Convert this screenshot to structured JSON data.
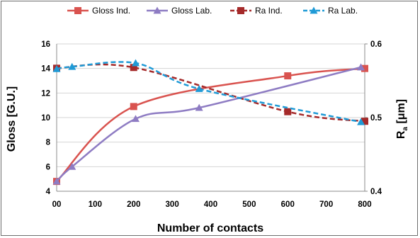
{
  "chart_data": {
    "type": "line",
    "title": "",
    "xlabel": "Number of contacts",
    "ylabel": "Gloss [G.U.]",
    "y2label": "R",
    "y2label_sub": "a",
    "y2label_unit": " [μm]",
    "xlim": [
      0,
      800
    ],
    "ylim": [
      4,
      16
    ],
    "y2lim": [
      0.4,
      0.6
    ],
    "x_ticks": [
      0,
      100,
      200,
      300,
      400,
      500,
      600,
      700,
      800
    ],
    "x_tick_labels": [
      "00",
      "100",
      "200",
      "300",
      "400",
      "500",
      "600",
      "700",
      "800"
    ],
    "y_ticks": [
      4,
      6,
      8,
      10,
      12,
      14,
      16
    ],
    "y2_ticks": [
      0.4,
      0.5,
      0.6
    ],
    "y2_tick_labels": [
      "0.4",
      "0.5",
      "0.6"
    ],
    "grid": "horizontal",
    "legend_position": "top",
    "series": [
      {
        "name": "Gloss Ind.",
        "axis": "left",
        "color": "#d9534f",
        "dash": "solid",
        "marker": "square",
        "x": [
          0,
          200,
          600,
          800
        ],
        "values": [
          4.8,
          10.9,
          13.4,
          14.0
        ]
      },
      {
        "name": "Gloss Lab.",
        "axis": "left",
        "color": "#8e7cc3",
        "dash": "solid",
        "marker": "triangle",
        "x": [
          0,
          40,
          205,
          370,
          790
        ],
        "values": [
          4.8,
          6.0,
          9.9,
          10.8,
          14.1
        ]
      },
      {
        "name": "Ra Ind.",
        "axis": "right",
        "color": "#a52a2a",
        "dash": "dashed",
        "marker": "square",
        "x": [
          0,
          200,
          600,
          800
        ],
        "values": [
          0.567,
          0.568,
          0.508,
          0.495
        ]
      },
      {
        "name": "Ra Lab.",
        "axis": "right",
        "color": "#1f9ad6",
        "dash": "dashed",
        "marker": "triangle",
        "x": [
          0,
          40,
          205,
          370,
          790
        ],
        "values": [
          0.566,
          0.569,
          0.574,
          0.539,
          0.494
        ]
      }
    ]
  }
}
